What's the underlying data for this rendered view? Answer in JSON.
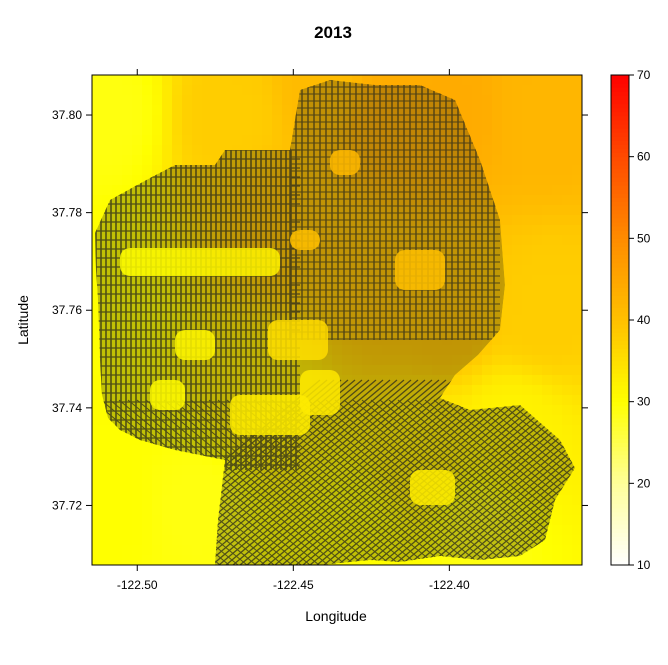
{
  "chart_data": {
    "type": "heatmap",
    "title": "2013",
    "xlabel": "Longitude",
    "ylabel": "Latitude",
    "xlim": [
      -122.5145,
      -122.3575
    ],
    "ylim": [
      37.7078,
      37.8082
    ],
    "x_ticks": [
      -122.5,
      -122.45,
      -122.4
    ],
    "x_tick_labels": [
      "-122.50",
      "-122.45",
      "-122.40"
    ],
    "y_ticks": [
      37.72,
      37.74,
      37.76,
      37.78,
      37.8
    ],
    "y_tick_labels": [
      "37.72",
      "37.74",
      "37.76",
      "37.78",
      "37.80"
    ],
    "colorbar": {
      "range": [
        10,
        70
      ],
      "ticks": [
        10,
        20,
        30,
        40,
        50,
        60,
        70
      ],
      "tick_labels": [
        "10",
        "20",
        "30",
        "40",
        "50",
        "60",
        "70"
      ],
      "colors": [
        "#ffffff",
        "#ffff9a",
        "#ffff00",
        "#ffc000",
        "#ff8c00",
        "#ff4a00",
        "#ff0000"
      ]
    },
    "surface_value_anchors": [
      {
        "lon": -122.51,
        "lat": 37.8,
        "value": 29
      },
      {
        "lon": -122.51,
        "lat": 37.76,
        "value": 30
      },
      {
        "lon": -122.51,
        "lat": 37.72,
        "value": 30
      },
      {
        "lon": -122.48,
        "lat": 37.72,
        "value": 29
      },
      {
        "lon": -122.47,
        "lat": 37.8,
        "value": 38
      },
      {
        "lon": -122.46,
        "lat": 37.74,
        "value": 33
      },
      {
        "lon": -122.45,
        "lat": 37.78,
        "value": 40
      },
      {
        "lon": -122.44,
        "lat": 37.805,
        "value": 41
      },
      {
        "lon": -122.42,
        "lat": 37.8,
        "value": 44
      },
      {
        "lon": -122.4,
        "lat": 37.8,
        "value": 44
      },
      {
        "lon": -122.37,
        "lat": 37.8,
        "value": 42
      },
      {
        "lon": -122.42,
        "lat": 37.765,
        "value": 40
      },
      {
        "lon": -122.4,
        "lat": 37.76,
        "value": 40
      },
      {
        "lon": -122.37,
        "lat": 37.76,
        "value": 38
      },
      {
        "lon": -122.41,
        "lat": 37.73,
        "value": 33
      },
      {
        "lon": -122.38,
        "lat": 37.735,
        "value": 32
      },
      {
        "lon": -122.43,
        "lat": 37.715,
        "value": 30
      },
      {
        "lon": -122.39,
        "lat": 37.715,
        "value": 29
      }
    ],
    "overlay": "street network of San Francisco drawn as dark lines",
    "grid": false,
    "legend_position": "right"
  }
}
